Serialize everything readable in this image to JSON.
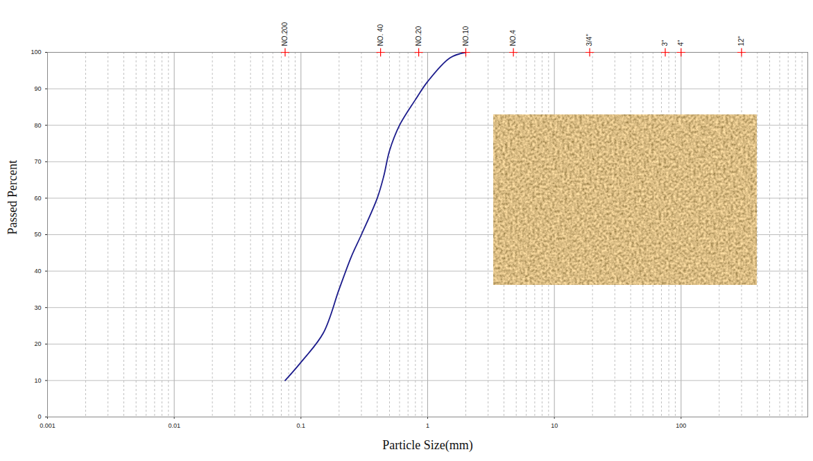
{
  "chart_data": {
    "type": "line",
    "x_label": "Particle Size(mm)",
    "y_label": "Passed Percent",
    "x": [
      0.075,
      0.1,
      0.15,
      0.2,
      0.25,
      0.3,
      0.4,
      0.45,
      0.5,
      0.6,
      0.8,
      1.0,
      1.5,
      2.0
    ],
    "values": [
      10,
      15,
      23,
      35,
      44,
      50,
      60,
      66,
      73,
      80,
      87,
      92,
      98.5,
      100
    ],
    "color": "#1c1c8c",
    "log": "x",
    "xlim": [
      0.001,
      1000
    ],
    "xticks": [
      0.001,
      0.01,
      0.1,
      1,
      10,
      100
    ],
    "ylim": [
      0,
      100
    ],
    "yticks": [
      0,
      10,
      20,
      30,
      40,
      50,
      60,
      70,
      80,
      90,
      100
    ],
    "grid": true,
    "sieves": {
      "labels": [
        "NO.200",
        "NO. 40",
        "NO.20",
        "NO.10",
        "NO.4",
        "3/4\"",
        "3\"",
        "4\"",
        "12\""
      ],
      "sizes": [
        0.075,
        0.425,
        0.85,
        2.0,
        4.75,
        19,
        75,
        100,
        300
      ],
      "color": "#ff0000",
      "marker": "plus"
    }
  }
}
